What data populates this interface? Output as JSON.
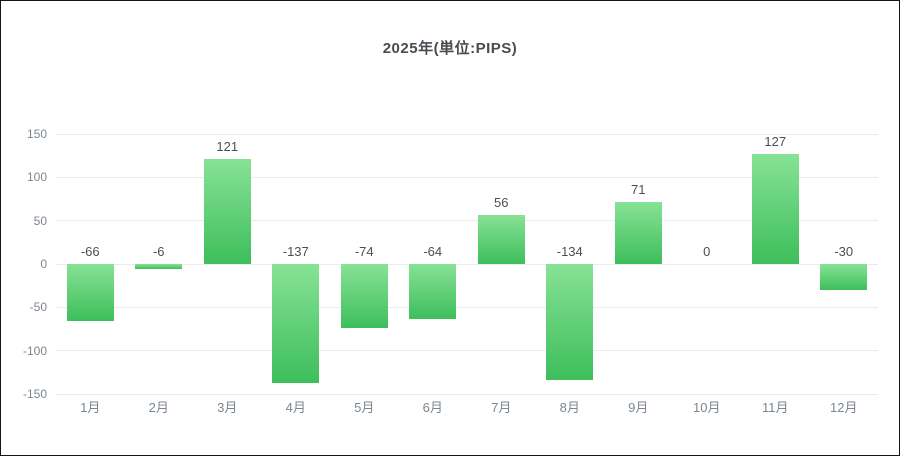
{
  "chart_data": {
    "type": "bar",
    "title": "2025年(単位:PIPS)",
    "categories": [
      "1月",
      "2月",
      "3月",
      "4月",
      "5月",
      "6月",
      "7月",
      "8月",
      "9月",
      "10月",
      "11月",
      "12月"
    ],
    "values": [
      -66,
      -6,
      121,
      -137,
      -74,
      -64,
      56,
      -134,
      71,
      0,
      127,
      -30
    ],
    "xlabel": "",
    "ylabel": "",
    "ylim": [
      -150,
      150
    ],
    "yticks": [
      150,
      100,
      50,
      0,
      -50,
      -100,
      -150
    ],
    "grid": true,
    "legend": "none",
    "value_labels": "shown above bars; for negative and zero values shown above the zero baseline",
    "colors": {
      "bar_gradient_top": "#87e295",
      "bar_gradient_bottom": "#3ebe5c",
      "gridline": "#e7ecf3",
      "axis_tick_label": "#7c8690",
      "value_label": "#4b4f55",
      "title": "#484c52",
      "background": "#ffffff",
      "frame_border": "#141414"
    }
  }
}
